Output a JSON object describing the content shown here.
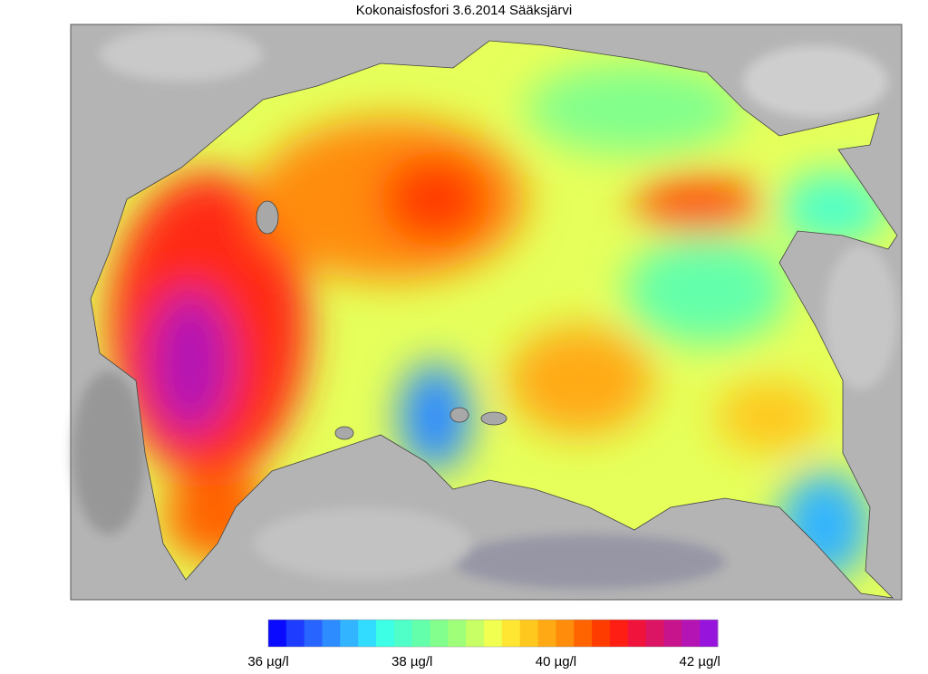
{
  "title": "Kokonaisfosfori 3.6.2014 Sääksjärvi",
  "colorbar": {
    "range": [
      36,
      42.25
    ],
    "ticks": [
      {
        "value": 36,
        "label": "36 µg/l"
      },
      {
        "value": 38,
        "label": "38 µg/l"
      },
      {
        "value": 40,
        "label": "40 µg/l"
      },
      {
        "value": 42,
        "label": "42 µg/l"
      }
    ],
    "colors": [
      "#0a0aff",
      "#1e3cff",
      "#2864ff",
      "#2d8cff",
      "#32b4ff",
      "#32dcff",
      "#3cffe6",
      "#50ffc8",
      "#64ffaa",
      "#82ff8c",
      "#a0ff78",
      "#c8ff64",
      "#f0ff50",
      "#ffe632",
      "#ffc81e",
      "#ffaa14",
      "#ff8c0a",
      "#ff6400",
      "#ff3c00",
      "#ff1e14",
      "#f0143c",
      "#dc1464",
      "#c8148c",
      "#b414b4",
      "#9614dc"
    ]
  }
}
